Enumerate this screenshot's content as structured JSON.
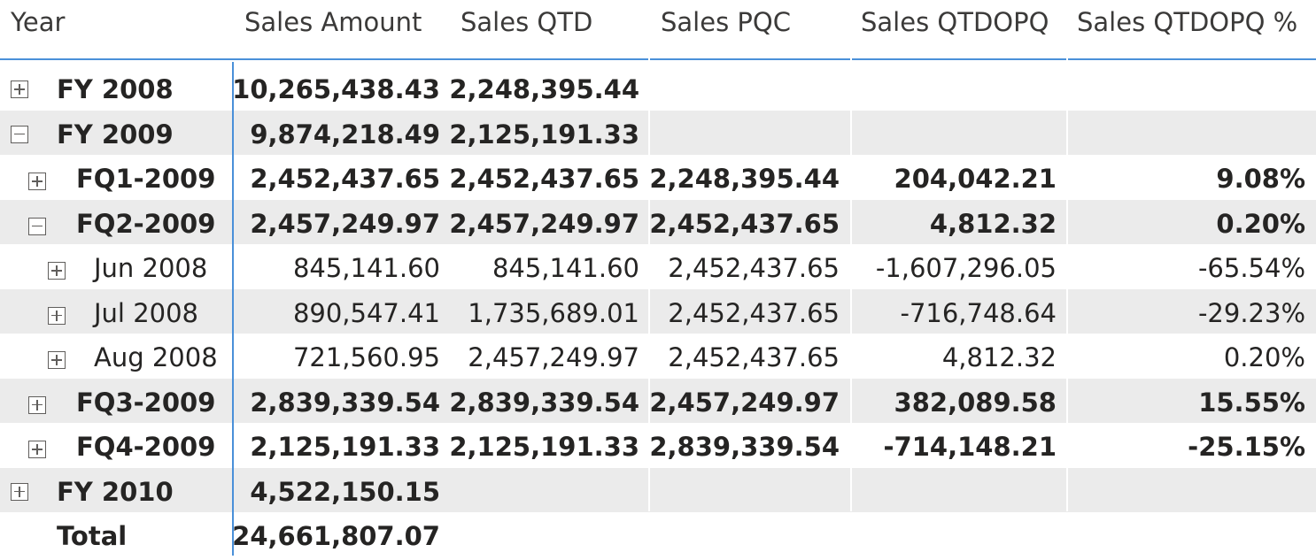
{
  "headers": {
    "year": "Year",
    "sales_amount": "Sales Amount",
    "sales_qtd": "Sales QTD",
    "sales_pqc": "Sales PQC",
    "sales_qtdopq": "Sales QTDOPQ",
    "sales_qtdopq_pct": "Sales QTDOPQ %"
  },
  "rows": [
    {
      "label": "FY 2008",
      "level": 0,
      "expander": "plus",
      "bold": true,
      "shaded": false,
      "sales_amount": "10,265,438.43",
      "sales_qtd": "2,248,395.44",
      "sales_pqc": "",
      "sales_qtdopq": "",
      "sales_qtdopq_pct": ""
    },
    {
      "label": "FY 2009",
      "level": 0,
      "expander": "minus",
      "bold": true,
      "shaded": true,
      "sales_amount": "9,874,218.49",
      "sales_qtd": "2,125,191.33",
      "sales_pqc": "",
      "sales_qtdopq": "",
      "sales_qtdopq_pct": ""
    },
    {
      "label": "FQ1-2009",
      "level": 1,
      "expander": "plus",
      "bold": true,
      "shaded": false,
      "sales_amount": "2,452,437.65",
      "sales_qtd": "2,452,437.65",
      "sales_pqc": "2,248,395.44",
      "sales_qtdopq": "204,042.21",
      "sales_qtdopq_pct": "9.08%"
    },
    {
      "label": "FQ2-2009",
      "level": 1,
      "expander": "minus",
      "bold": true,
      "shaded": true,
      "sales_amount": "2,457,249.97",
      "sales_qtd": "2,457,249.97",
      "sales_pqc": "2,452,437.65",
      "sales_qtdopq": "4,812.32",
      "sales_qtdopq_pct": "0.20%"
    },
    {
      "label": "Jun 2008",
      "level": 2,
      "expander": "plus",
      "bold": false,
      "shaded": false,
      "sales_amount": "845,141.60",
      "sales_qtd": "845,141.60",
      "sales_pqc": "2,452,437.65",
      "sales_qtdopq": "-1,607,296.05",
      "sales_qtdopq_pct": "-65.54%"
    },
    {
      "label": "Jul 2008",
      "level": 2,
      "expander": "plus",
      "bold": false,
      "shaded": true,
      "sales_amount": "890,547.41",
      "sales_qtd": "1,735,689.01",
      "sales_pqc": "2,452,437.65",
      "sales_qtdopq": "-716,748.64",
      "sales_qtdopq_pct": "-29.23%"
    },
    {
      "label": "Aug 2008",
      "level": 2,
      "expander": "plus",
      "bold": false,
      "shaded": false,
      "sales_amount": "721,560.95",
      "sales_qtd": "2,457,249.97",
      "sales_pqc": "2,452,437.65",
      "sales_qtdopq": "4,812.32",
      "sales_qtdopq_pct": "0.20%"
    },
    {
      "label": "FQ3-2009",
      "level": 1,
      "expander": "plus",
      "bold": true,
      "shaded": true,
      "sales_amount": "2,839,339.54",
      "sales_qtd": "2,839,339.54",
      "sales_pqc": "2,457,249.97",
      "sales_qtdopq": "382,089.58",
      "sales_qtdopq_pct": "15.55%"
    },
    {
      "label": "FQ4-2009",
      "level": 1,
      "expander": "plus",
      "bold": true,
      "shaded": false,
      "sales_amount": "2,125,191.33",
      "sales_qtd": "2,125,191.33",
      "sales_pqc": "2,839,339.54",
      "sales_qtdopq": "-714,148.21",
      "sales_qtdopq_pct": "-25.15%"
    },
    {
      "label": "FY 2010",
      "level": 0,
      "expander": "plus",
      "bold": true,
      "shaded": true,
      "sales_amount": "4,522,150.15",
      "sales_qtd": "",
      "sales_pqc": "",
      "sales_qtdopq": "",
      "sales_qtdopq_pct": ""
    },
    {
      "label": "Total",
      "level": 0,
      "expander": "none",
      "bold": true,
      "shaded": false,
      "sales_amount": "24,661,807.07",
      "sales_qtd": "",
      "sales_pqc": "",
      "sales_qtdopq": "",
      "sales_qtdopq_pct": ""
    }
  ],
  "colors": {
    "accent": "#4a90d9",
    "row_shade": "#ebebeb",
    "text": "#252423"
  },
  "icons": {
    "expand": "plus-box-icon",
    "collapse": "minus-box-icon"
  }
}
